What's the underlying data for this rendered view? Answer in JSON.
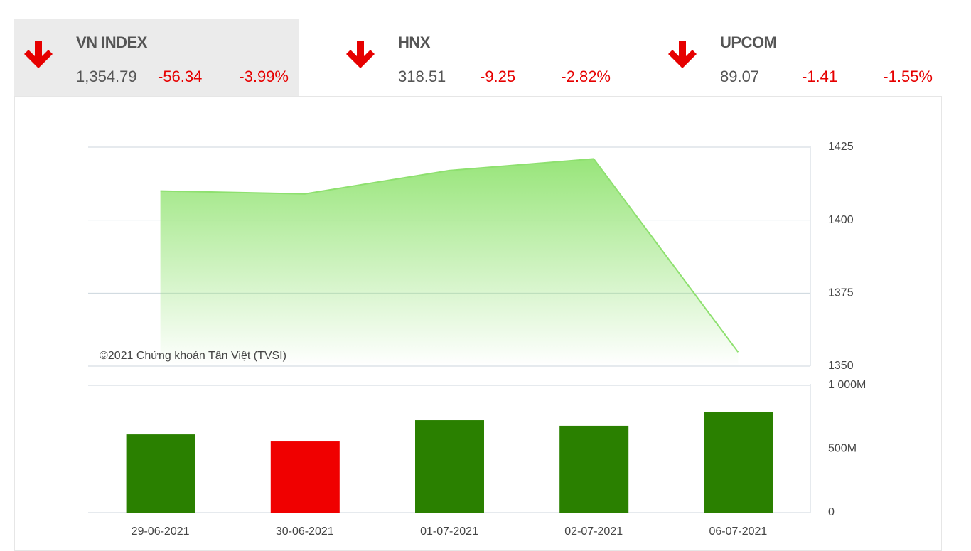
{
  "tickers": [
    {
      "name": "VN INDEX",
      "value": "1,354.79",
      "change": "-56.34",
      "percent": "-3.99%"
    },
    {
      "name": "HNX",
      "value": "318.51",
      "change": "-9.25",
      "percent": "-2.82%"
    },
    {
      "name": "UPCOM",
      "value": "89.07",
      "change": "-1.41",
      "percent": "-1.55%"
    }
  ],
  "chart_data": [
    {
      "type": "area",
      "annotation": "©2021 Chứng khoán Tân Việt (TVSI)",
      "values": [
        1410,
        1409,
        1417,
        1421,
        1354.79
      ],
      "color": "#8ee06f",
      "ylim": [
        1350,
        1425
      ],
      "yticks": [
        1350,
        1375,
        1400,
        1425
      ],
      "grid": true
    },
    {
      "type": "bar",
      "categories": [
        "29-06-2021",
        "30-06-2021",
        "01-07-2021",
        "02-07-2021",
        "06-07-2021"
      ],
      "values": [
        614,
        564,
        726,
        682,
        788
      ],
      "colors": [
        "#2a8000",
        "#f00000",
        "#2a8000",
        "#2a8000",
        "#2a8000"
      ],
      "ylim": [
        0,
        1000
      ],
      "yticks": [
        0,
        {
          "value": 500,
          "label": "500M"
        },
        {
          "value": 1000,
          "label": "1 000M"
        }
      ],
      "grid": true
    }
  ]
}
